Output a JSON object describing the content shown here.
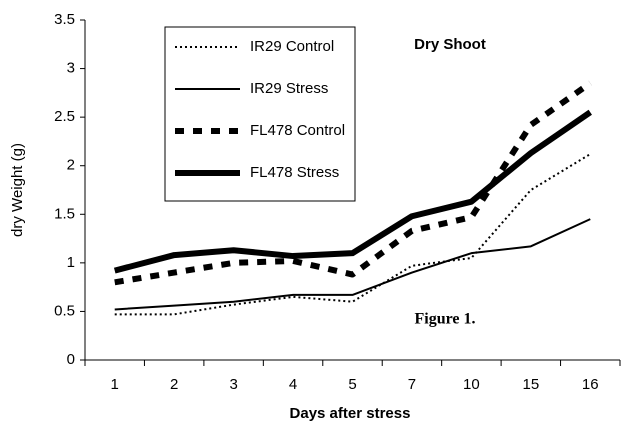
{
  "chart_data": {
    "type": "line",
    "title": "Dry Shoot",
    "annotation": "Figure 1.",
    "x_label": "Days after stress",
    "y_label": "dry Weight (g)",
    "categories": [
      "1",
      "2",
      "3",
      "4",
      "5",
      "7",
      "10",
      "15",
      "16"
    ],
    "series": [
      {
        "name": "IR29 Control",
        "color": "#000000",
        "line_style": "dotted",
        "line_weight": "thin",
        "values": [
          0.47,
          0.47,
          0.57,
          0.65,
          0.6,
          0.97,
          1.05,
          1.75,
          2.12
        ]
      },
      {
        "name": "IR29 Stress",
        "color": "#000000",
        "line_style": "solid",
        "line_weight": "thin",
        "values": [
          0.52,
          0.56,
          0.6,
          0.67,
          0.67,
          0.9,
          1.1,
          1.17,
          1.45
        ]
      },
      {
        "name": "FL478 Control",
        "color": "#000000",
        "line_style": "dotted",
        "line_weight": "thick",
        "values": [
          0.8,
          0.9,
          1.0,
          1.02,
          0.88,
          1.33,
          1.47,
          2.42,
          2.85
        ]
      },
      {
        "name": "FL478 Stress",
        "color": "#000000",
        "line_style": "solid",
        "line_weight": "thick",
        "values": [
          0.92,
          1.08,
          1.13,
          1.07,
          1.1,
          1.48,
          1.63,
          2.13,
          2.55
        ]
      }
    ],
    "ylim": [
      0,
      3.5
    ],
    "yticks": [
      0,
      0.5,
      1,
      1.5,
      2,
      2.5,
      3,
      3.5
    ],
    "grid": false
  }
}
